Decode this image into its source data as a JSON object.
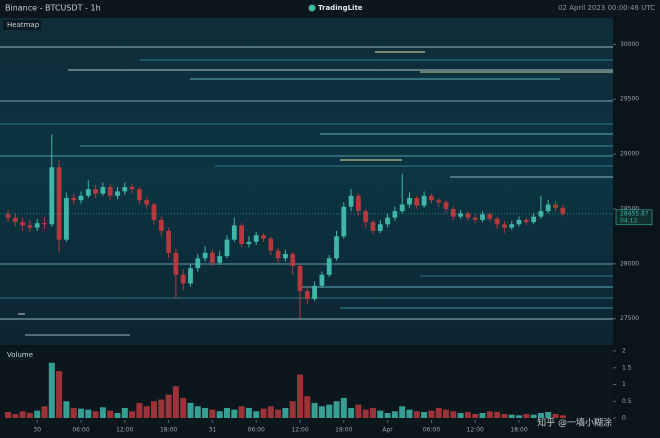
{
  "chart_data": {
    "type": "candlestick",
    "title": "Binance - BTCUSDT - 1h",
    "brand": "TradingLite",
    "timestamp": "02 April 2023 00:00:46 UTC",
    "panel_title": "Heatmap",
    "volume_title": "Volume",
    "countdown": "04:12",
    "watermark": "知乎 @一墙小糊涂",
    "up_color": "#3fb6a8",
    "down_color": "#b5383d",
    "ylim": [
      27260,
      30240
    ],
    "yticks": [
      27500,
      28000,
      28500,
      29000,
      29500,
      30000
    ],
    "volume_ylim": [
      0,
      2.09
    ],
    "volume_yticks": [
      0,
      0.5,
      1,
      1.5,
      2
    ],
    "xticks": [
      {
        "value": 4,
        "label": "30"
      },
      {
        "value": 10,
        "label": "06:00"
      },
      {
        "value": 16,
        "label": "12:00"
      },
      {
        "value": 22,
        "label": "18:00"
      },
      {
        "value": 28,
        "label": "31"
      },
      {
        "value": 34,
        "label": "06:00"
      },
      {
        "value": 40,
        "label": "12:00"
      },
      {
        "value": 46,
        "label": "18:00"
      },
      {
        "value": 52,
        "label": "Apr"
      },
      {
        "value": 58,
        "label": "06:00"
      },
      {
        "value": 64,
        "label": "12:00"
      },
      {
        "value": 70,
        "label": "18:00"
      }
    ],
    "open": [
      28450,
      28420,
      28380,
      28350,
      28330,
      28370,
      28360,
      28880,
      28220,
      28600,
      28580,
      28620,
      28680,
      28640,
      28700,
      28620,
      28660,
      28700,
      28680,
      28580,
      28540,
      28400,
      28300,
      28100,
      27900,
      27820,
      27960,
      28050,
      28100,
      28010,
      28070,
      28220,
      28350,
      28180,
      28200,
      28260,
      28230,
      28120,
      28050,
      28090,
      27980,
      27750,
      27680,
      27800,
      27900,
      28050,
      28250,
      28520,
      28620,
      28480,
      28380,
      28300,
      28360,
      28420,
      28480,
      28540,
      28600,
      28530,
      28620,
      28580,
      28560,
      28500,
      28430,
      28460,
      28420,
      28400,
      28450,
      28410,
      28360,
      28330,
      28360,
      28400,
      28380,
      28430,
      28480,
      28540,
      28510
    ],
    "high": [
      28490,
      28460,
      28420,
      28400,
      28410,
      28420,
      29180,
      28950,
      28650,
      28640,
      28660,
      28760,
      28720,
      28740,
      28730,
      28700,
      28740,
      28730,
      28700,
      28610,
      28560,
      28430,
      28330,
      28140,
      27950,
      28000,
      28090,
      28160,
      28130,
      28120,
      28260,
      28420,
      28370,
      28250,
      28290,
      28280,
      28250,
      28150,
      28130,
      28110,
      28000,
      27790,
      27840,
      27930,
      28080,
      28300,
      28560,
      28680,
      28640,
      28500,
      28400,
      28400,
      28460,
      28520,
      28820,
      28650,
      28620,
      28660,
      28640,
      28600,
      28580,
      28520,
      28490,
      28480,
      28450,
      28480,
      28470,
      28430,
      28390,
      28390,
      28430,
      28420,
      28460,
      28620,
      28580,
      28570,
      28540
    ],
    "low": [
      28380,
      28340,
      28300,
      28290,
      28300,
      28320,
      28340,
      28100,
      28200,
      28540,
      28550,
      28600,
      28600,
      28620,
      28580,
      28590,
      28630,
      28640,
      28540,
      28500,
      28360,
      28250,
      28050,
      27690,
      27760,
      27790,
      27930,
      28020,
      27980,
      27990,
      28050,
      28200,
      28150,
      28150,
      28170,
      28200,
      28080,
      28010,
      28020,
      27900,
      27500,
      27630,
      27660,
      27780,
      27880,
      28030,
      28230,
      28480,
      28440,
      28330,
      28270,
      28280,
      28330,
      28390,
      28460,
      28510,
      28500,
      28510,
      28550,
      28520,
      28470,
      28400,
      28410,
      28390,
      28370,
      28380,
      28380,
      28320,
      28280,
      28310,
      28340,
      28350,
      28360,
      28410,
      28460,
      28480,
      28430
    ],
    "close": [
      28420,
      28380,
      28350,
      28330,
      28370,
      28360,
      28880,
      28220,
      28600,
      28580,
      28620,
      28680,
      28640,
      28700,
      28620,
      28660,
      28700,
      28680,
      28580,
      28540,
      28400,
      28300,
      28100,
      27900,
      27820,
      27960,
      28050,
      28100,
      28010,
      28070,
      28220,
      28350,
      28180,
      28200,
      28260,
      28230,
      28120,
      28050,
      28090,
      27980,
      27750,
      27680,
      27800,
      27900,
      28050,
      28250,
      28520,
      28620,
      28480,
      28380,
      28300,
      28360,
      28420,
      28480,
      28540,
      28600,
      28530,
      28620,
      28580,
      28560,
      28500,
      28430,
      28460,
      28420,
      28400,
      28450,
      28410,
      28360,
      28330,
      28360,
      28400,
      28380,
      28430,
      28480,
      28540,
      28510,
      28455.87
    ],
    "volume": [
      0.18,
      0.12,
      0.2,
      0.15,
      0.22,
      0.35,
      1.65,
      1.4,
      0.5,
      0.3,
      0.28,
      0.25,
      0.2,
      0.32,
      0.22,
      0.15,
      0.3,
      0.2,
      0.45,
      0.35,
      0.5,
      0.55,
      0.7,
      0.95,
      0.6,
      0.45,
      0.35,
      0.3,
      0.25,
      0.2,
      0.3,
      0.25,
      0.35,
      0.3,
      0.2,
      0.28,
      0.35,
      0.25,
      0.3,
      0.5,
      1.3,
      0.65,
      0.45,
      0.35,
      0.4,
      0.5,
      0.6,
      0.3,
      0.4,
      0.25,
      0.3,
      0.22,
      0.15,
      0.2,
      0.35,
      0.25,
      0.2,
      0.18,
      0.22,
      0.3,
      0.25,
      0.2,
      0.15,
      0.18,
      0.12,
      0.15,
      0.2,
      0.18,
      0.12,
      0.1,
      0.08,
      0.12,
      0.1,
      0.15,
      0.18,
      0.12,
      0.08
    ]
  }
}
